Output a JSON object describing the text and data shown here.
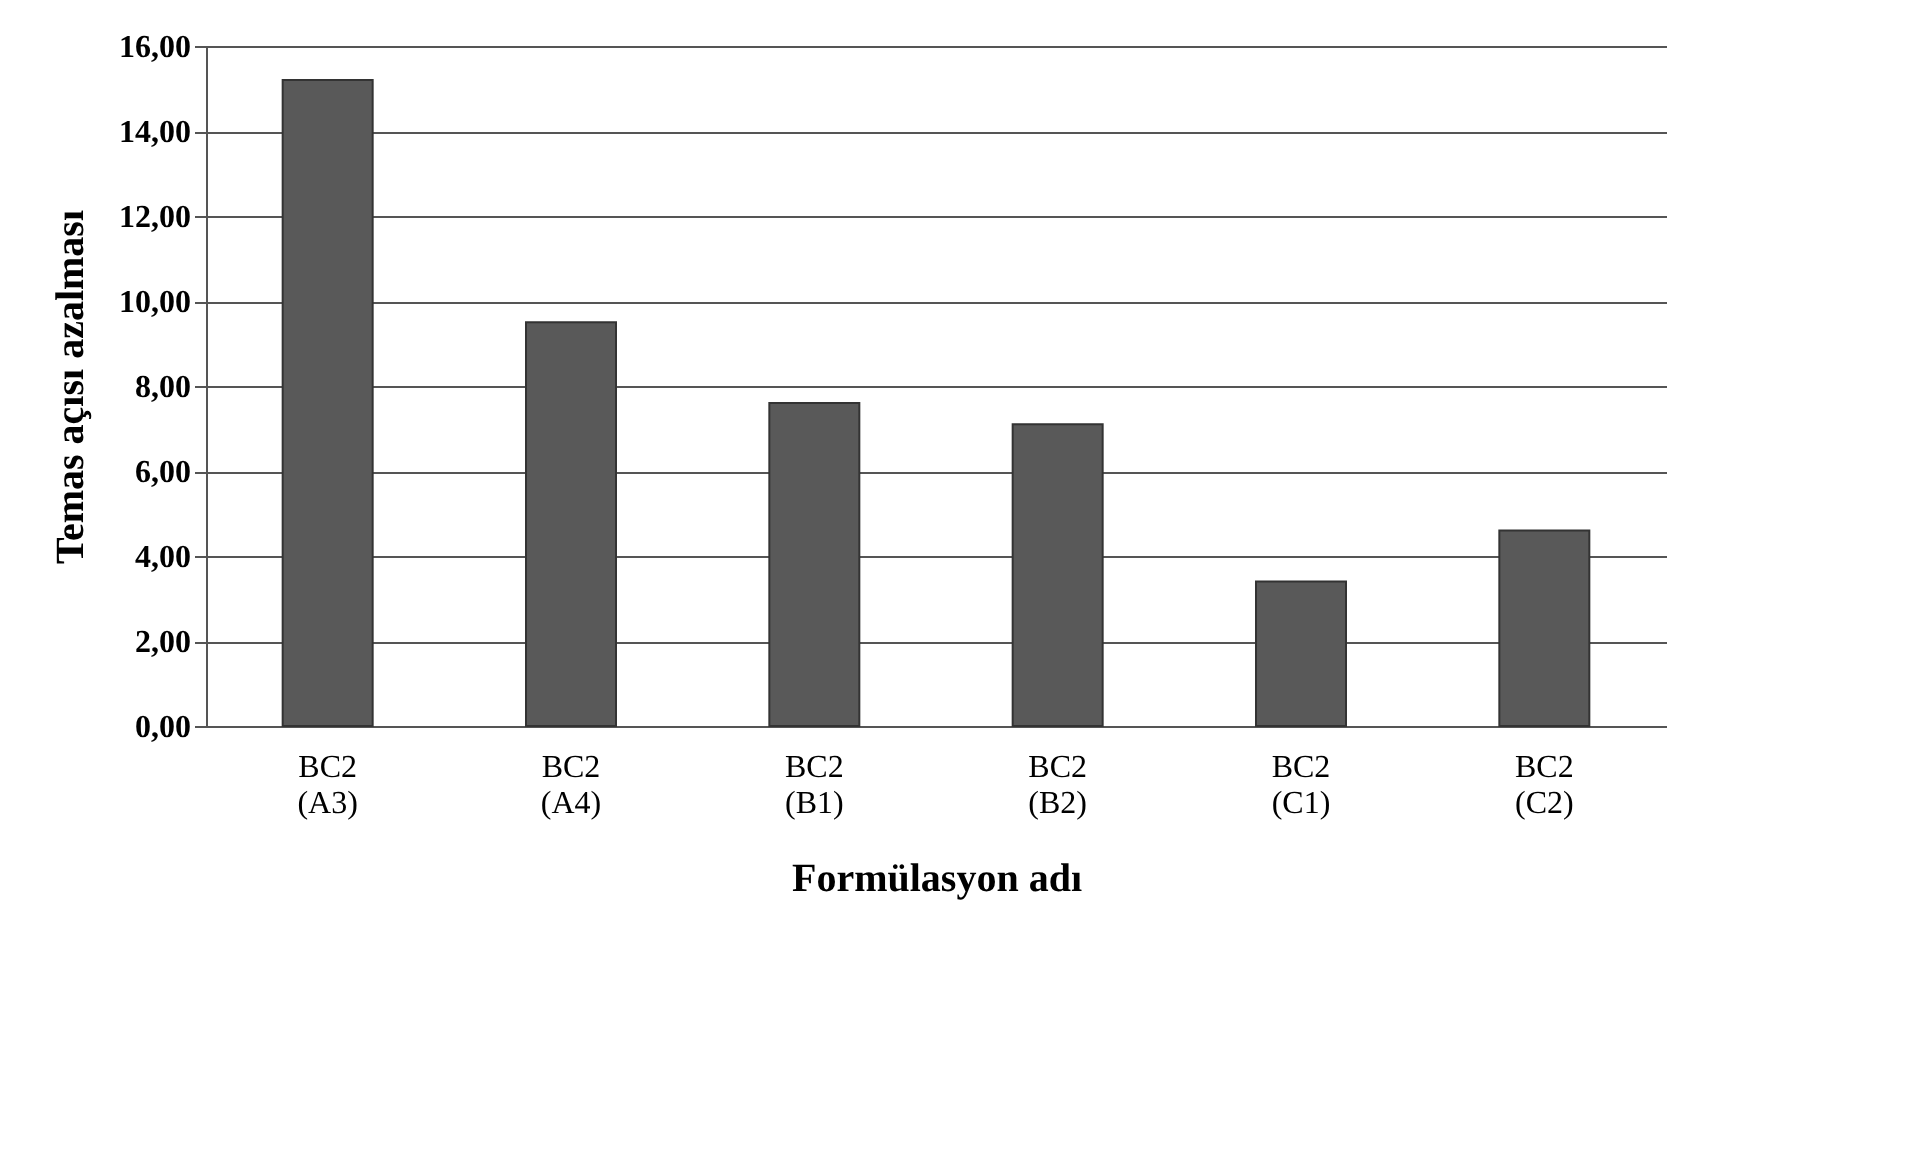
{
  "chart_data": {
    "type": "bar",
    "xlabel": "Formülasyon adı",
    "ylabel": "Temas açısı azalması",
    "categories": [
      "BC2 (A3)",
      "BC2 (A4)",
      "BC2 (B1)",
      "BC2 (B2)",
      "BC2 (C1)",
      "BC2 (C2)"
    ],
    "values": [
      15.2,
      9.5,
      7.6,
      7.1,
      3.4,
      4.6
    ],
    "color": "#595959",
    "ylim": [
      0,
      16
    ],
    "yticks": [
      {
        "value": 0,
        "label": "0,00"
      },
      {
        "value": 2,
        "label": "2,00"
      },
      {
        "value": 4,
        "label": "4,00"
      },
      {
        "value": 6,
        "label": "6,00"
      },
      {
        "value": 8,
        "label": "8,00"
      },
      {
        "value": 10,
        "label": "10,00"
      },
      {
        "value": 12,
        "label": "12,00"
      },
      {
        "value": 14,
        "label": "14,00"
      },
      {
        "value": 16,
        "label": "16,00"
      }
    ],
    "grid": "y"
  }
}
